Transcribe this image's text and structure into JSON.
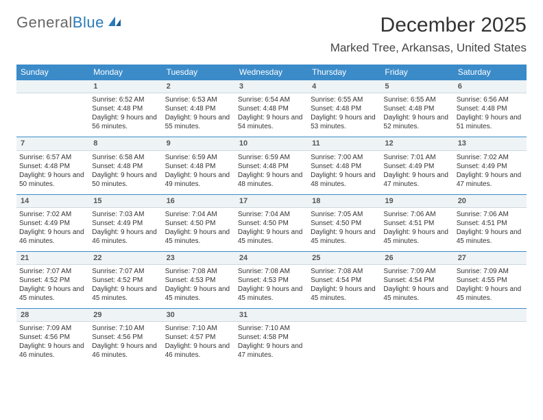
{
  "brand": {
    "part1": "General",
    "part2": "Blue"
  },
  "title": "December 2025",
  "location": "Marked Tree, Arkansas, United States",
  "colors": {
    "header_bg": "#3b8bc9",
    "header_text": "#ffffff",
    "daynum_bg": "#eef3f6",
    "daynum_border_top": "#3b8bc9",
    "logo_blue": "#2a7ab8"
  },
  "weekdays": [
    "Sunday",
    "Monday",
    "Tuesday",
    "Wednesday",
    "Thursday",
    "Friday",
    "Saturday"
  ],
  "weeks": [
    {
      "nums": [
        "",
        "1",
        "2",
        "3",
        "4",
        "5",
        "6"
      ],
      "cells": [
        null,
        {
          "sunrise": "Sunrise: 6:52 AM",
          "sunset": "Sunset: 4:48 PM",
          "daylight": "Daylight: 9 hours and 56 minutes."
        },
        {
          "sunrise": "Sunrise: 6:53 AM",
          "sunset": "Sunset: 4:48 PM",
          "daylight": "Daylight: 9 hours and 55 minutes."
        },
        {
          "sunrise": "Sunrise: 6:54 AM",
          "sunset": "Sunset: 4:48 PM",
          "daylight": "Daylight: 9 hours and 54 minutes."
        },
        {
          "sunrise": "Sunrise: 6:55 AM",
          "sunset": "Sunset: 4:48 PM",
          "daylight": "Daylight: 9 hours and 53 minutes."
        },
        {
          "sunrise": "Sunrise: 6:55 AM",
          "sunset": "Sunset: 4:48 PM",
          "daylight": "Daylight: 9 hours and 52 minutes."
        },
        {
          "sunrise": "Sunrise: 6:56 AM",
          "sunset": "Sunset: 4:48 PM",
          "daylight": "Daylight: 9 hours and 51 minutes."
        }
      ]
    },
    {
      "nums": [
        "7",
        "8",
        "9",
        "10",
        "11",
        "12",
        "13"
      ],
      "cells": [
        {
          "sunrise": "Sunrise: 6:57 AM",
          "sunset": "Sunset: 4:48 PM",
          "daylight": "Daylight: 9 hours and 50 minutes."
        },
        {
          "sunrise": "Sunrise: 6:58 AM",
          "sunset": "Sunset: 4:48 PM",
          "daylight": "Daylight: 9 hours and 50 minutes."
        },
        {
          "sunrise": "Sunrise: 6:59 AM",
          "sunset": "Sunset: 4:48 PM",
          "daylight": "Daylight: 9 hours and 49 minutes."
        },
        {
          "sunrise": "Sunrise: 6:59 AM",
          "sunset": "Sunset: 4:48 PM",
          "daylight": "Daylight: 9 hours and 48 minutes."
        },
        {
          "sunrise": "Sunrise: 7:00 AM",
          "sunset": "Sunset: 4:48 PM",
          "daylight": "Daylight: 9 hours and 48 minutes."
        },
        {
          "sunrise": "Sunrise: 7:01 AM",
          "sunset": "Sunset: 4:49 PM",
          "daylight": "Daylight: 9 hours and 47 minutes."
        },
        {
          "sunrise": "Sunrise: 7:02 AM",
          "sunset": "Sunset: 4:49 PM",
          "daylight": "Daylight: 9 hours and 47 minutes."
        }
      ]
    },
    {
      "nums": [
        "14",
        "15",
        "16",
        "17",
        "18",
        "19",
        "20"
      ],
      "cells": [
        {
          "sunrise": "Sunrise: 7:02 AM",
          "sunset": "Sunset: 4:49 PM",
          "daylight": "Daylight: 9 hours and 46 minutes."
        },
        {
          "sunrise": "Sunrise: 7:03 AM",
          "sunset": "Sunset: 4:49 PM",
          "daylight": "Daylight: 9 hours and 46 minutes."
        },
        {
          "sunrise": "Sunrise: 7:04 AM",
          "sunset": "Sunset: 4:50 PM",
          "daylight": "Daylight: 9 hours and 45 minutes."
        },
        {
          "sunrise": "Sunrise: 7:04 AM",
          "sunset": "Sunset: 4:50 PM",
          "daylight": "Daylight: 9 hours and 45 minutes."
        },
        {
          "sunrise": "Sunrise: 7:05 AM",
          "sunset": "Sunset: 4:50 PM",
          "daylight": "Daylight: 9 hours and 45 minutes."
        },
        {
          "sunrise": "Sunrise: 7:06 AM",
          "sunset": "Sunset: 4:51 PM",
          "daylight": "Daylight: 9 hours and 45 minutes."
        },
        {
          "sunrise": "Sunrise: 7:06 AM",
          "sunset": "Sunset: 4:51 PM",
          "daylight": "Daylight: 9 hours and 45 minutes."
        }
      ]
    },
    {
      "nums": [
        "21",
        "22",
        "23",
        "24",
        "25",
        "26",
        "27"
      ],
      "cells": [
        {
          "sunrise": "Sunrise: 7:07 AM",
          "sunset": "Sunset: 4:52 PM",
          "daylight": "Daylight: 9 hours and 45 minutes."
        },
        {
          "sunrise": "Sunrise: 7:07 AM",
          "sunset": "Sunset: 4:52 PM",
          "daylight": "Daylight: 9 hours and 45 minutes."
        },
        {
          "sunrise": "Sunrise: 7:08 AM",
          "sunset": "Sunset: 4:53 PM",
          "daylight": "Daylight: 9 hours and 45 minutes."
        },
        {
          "sunrise": "Sunrise: 7:08 AM",
          "sunset": "Sunset: 4:53 PM",
          "daylight": "Daylight: 9 hours and 45 minutes."
        },
        {
          "sunrise": "Sunrise: 7:08 AM",
          "sunset": "Sunset: 4:54 PM",
          "daylight": "Daylight: 9 hours and 45 minutes."
        },
        {
          "sunrise": "Sunrise: 7:09 AM",
          "sunset": "Sunset: 4:54 PM",
          "daylight": "Daylight: 9 hours and 45 minutes."
        },
        {
          "sunrise": "Sunrise: 7:09 AM",
          "sunset": "Sunset: 4:55 PM",
          "daylight": "Daylight: 9 hours and 45 minutes."
        }
      ]
    },
    {
      "nums": [
        "28",
        "29",
        "30",
        "31",
        "",
        "",
        ""
      ],
      "cells": [
        {
          "sunrise": "Sunrise: 7:09 AM",
          "sunset": "Sunset: 4:56 PM",
          "daylight": "Daylight: 9 hours and 46 minutes."
        },
        {
          "sunrise": "Sunrise: 7:10 AM",
          "sunset": "Sunset: 4:56 PM",
          "daylight": "Daylight: 9 hours and 46 minutes."
        },
        {
          "sunrise": "Sunrise: 7:10 AM",
          "sunset": "Sunset: 4:57 PM",
          "daylight": "Daylight: 9 hours and 46 minutes."
        },
        {
          "sunrise": "Sunrise: 7:10 AM",
          "sunset": "Sunset: 4:58 PM",
          "daylight": "Daylight: 9 hours and 47 minutes."
        },
        null,
        null,
        null
      ]
    }
  ]
}
